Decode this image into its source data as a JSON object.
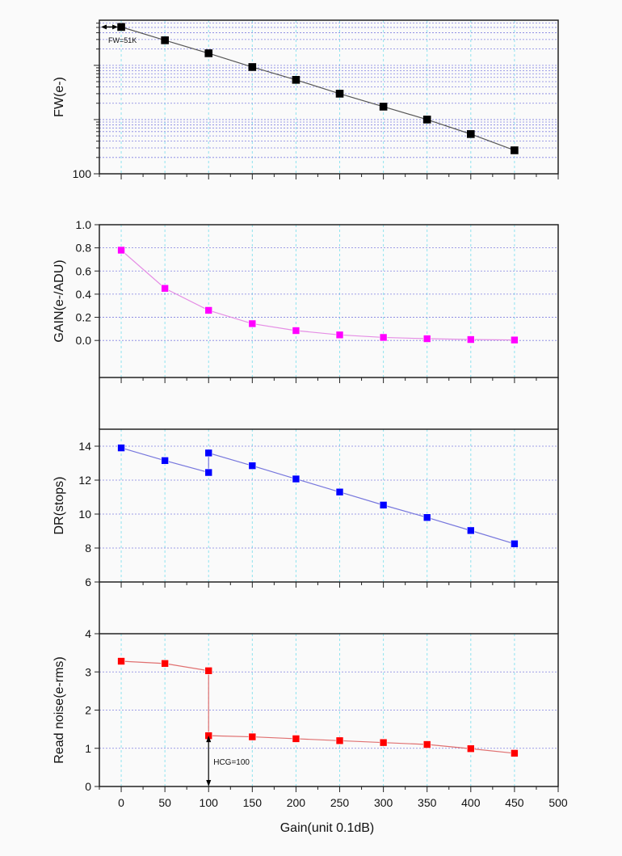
{
  "chart_data": {
    "type": "line",
    "x": [
      0,
      50,
      100,
      150,
      200,
      250,
      300,
      350,
      400,
      450
    ],
    "xlabel": "Gain(unit 0.1dB)",
    "xlim": [
      -25,
      500
    ],
    "xticks": [
      0,
      50,
      100,
      150,
      200,
      250,
      300,
      350,
      400,
      450,
      500
    ],
    "grid": true,
    "panels": [
      {
        "ylabel": "FW(e-)",
        "scale": "log",
        "ylim": [
          100,
          68000
        ],
        "yticks": [
          100
        ],
        "ytick_labels": [
          "100"
        ],
        "color": "#000000",
        "line_color": "#555555",
        "x": [
          0,
          50,
          100,
          150,
          200,
          250,
          300,
          350,
          400,
          450
        ],
        "values": [
          51000,
          29000,
          16700,
          9300,
          5400,
          3000,
          1730,
          1000,
          540,
          271
        ],
        "annotation": "FW=51K"
      },
      {
        "ylabel": "GAIN(e-/ADU)",
        "scale": "linear",
        "ylim": [
          -0.32,
          1.0
        ],
        "yticks": [
          0.0,
          0.2,
          0.4,
          0.6,
          0.8,
          1.0
        ],
        "ytick_labels": [
          "0.0",
          "0.2",
          "0.4",
          "0.6",
          "0.8",
          "1.0"
        ],
        "color": "#ff00ff",
        "line_color": "#e58ee5",
        "x": [
          0,
          50,
          100,
          150,
          200,
          250,
          300,
          350,
          400,
          450
        ],
        "values": [
          0.78,
          0.45,
          0.26,
          0.145,
          0.085,
          0.048,
          0.026,
          0.015,
          0.008,
          0.004
        ]
      },
      {
        "ylabel": "DR(stops)",
        "scale": "linear",
        "ylim": [
          6,
          15
        ],
        "yticks": [
          6,
          8,
          10,
          12,
          14
        ],
        "ytick_labels": [
          "6",
          "8",
          "10",
          "12",
          "14"
        ],
        "color": "#0000ff",
        "line_color": "#7777dd",
        "x": [
          0,
          50,
          100,
          100,
          150,
          200,
          250,
          300,
          350,
          400,
          450
        ],
        "values": [
          13.9,
          13.15,
          12.45,
          13.6,
          12.85,
          12.07,
          11.3,
          10.53,
          9.8,
          9.03,
          8.25
        ]
      },
      {
        "ylabel": "Read noise(e-rms)",
        "scale": "linear",
        "ylim": [
          0,
          4
        ],
        "yticks": [
          0,
          1,
          2,
          3,
          4
        ],
        "ytick_labels": [
          "0",
          "1",
          "2",
          "3",
          "4"
        ],
        "color": "#ff0000",
        "line_color": "#e07070",
        "x": [
          0,
          50,
          100,
          100,
          150,
          200,
          250,
          300,
          350,
          400,
          450
        ],
        "values": [
          3.28,
          3.22,
          3.03,
          1.33,
          1.3,
          1.25,
          1.2,
          1.15,
          1.1,
          0.99,
          0.87
        ],
        "annotation": "HCG=100"
      }
    ]
  }
}
